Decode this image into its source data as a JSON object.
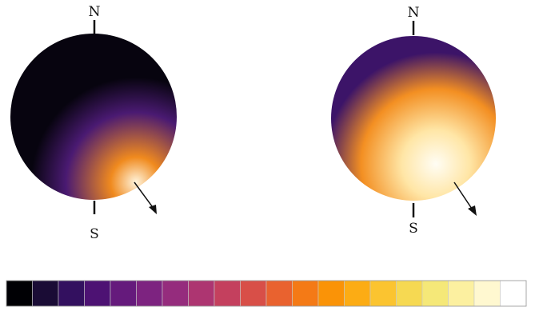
{
  "globes": [
    {
      "north_label": "N",
      "south_label": "S",
      "colors": {
        "dark": "#07040f",
        "purple": "#4a1a72",
        "orange": "#f08a1e",
        "highlight": "#fff4dc"
      }
    },
    {
      "north_label": "N",
      "south_label": "S",
      "colors": {
        "purple": "#3c1468",
        "orange": "#f38f22",
        "light": "#ffe6a6",
        "highlight": "#fffdf4"
      }
    }
  ],
  "colorbar": {
    "swatches": [
      "#000004",
      "#1a0c35",
      "#33105f",
      "#4d1273",
      "#651a7c",
      "#7d2380",
      "#952c7d",
      "#ad3571",
      "#c4405e",
      "#d84f48",
      "#e9622f",
      "#f47a16",
      "#fa9307",
      "#fcac14",
      "#fbc430",
      "#f6d952",
      "#f5e878",
      "#fcf0a0",
      "#fff8d0",
      "#ffffff"
    ]
  }
}
